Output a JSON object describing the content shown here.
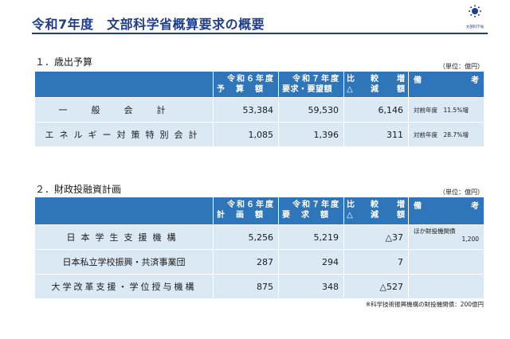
{
  "header": {
    "title": "令和7年度　文部科学省概算要求の概要",
    "logo_text": "文部科学省",
    "rule_color": "#1f3d8c"
  },
  "section1": {
    "heading": "１．歳出予算",
    "unit": "（単位：億円）",
    "columns": {
      "prev_line1": "令和６年度",
      "prev_line2": "予　算　額",
      "req_line1": "令和７年度",
      "req_line2": "要求・要望額",
      "diff_a": "比",
      "diff_b": "較",
      "diff_c": "増",
      "diff_d": "△",
      "diff_e": "減",
      "diff_f": "額",
      "note_a": "備",
      "note_b": "考"
    },
    "rows": [
      {
        "name": "一般会計",
        "prev": "53,384",
        "req": "59,530",
        "diff": "6,146",
        "note": "対前年度　11.5%増"
      },
      {
        "name": "エネルギー対策特別会計",
        "prev": "1,085",
        "req": "1,396",
        "diff": "311",
        "note": "対前年度　28.7%増"
      }
    ]
  },
  "section2": {
    "heading": "２．財政投融資計画",
    "unit": "（単位：億円）",
    "columns": {
      "prev_line1": "令和６年度",
      "prev_line2": "計　画　額",
      "req_line1": "令和７年度",
      "req_line2": "要　求　額",
      "diff_a": "比",
      "diff_b": "較",
      "diff_c": "増",
      "diff_d": "△",
      "diff_e": "減",
      "diff_f": "額",
      "note_a": "備",
      "note_b": "考"
    },
    "rows": [
      {
        "name": "日本学生支援機構",
        "prev": "5,256",
        "req": "5,219",
        "diff": "△37",
        "note_line1": "ほか財投機関債",
        "note_line2": "1,200"
      },
      {
        "name": "日本私立学校振興・共済事業団",
        "prev": "287",
        "req": "294",
        "diff": "7",
        "note_line1": "",
        "note_line2": ""
      },
      {
        "name": "大学改革支援・学位授与機構",
        "prev": "875",
        "req": "348",
        "diff": "△527",
        "note_line1": "",
        "note_line2": ""
      }
    ],
    "footnote": "※科学技術振興機構の財投機関債：200億円"
  },
  "colors": {
    "header_fill": "#2e76b9",
    "row_fill": "#dbe9f5",
    "title_color": "#1f3d8c"
  }
}
